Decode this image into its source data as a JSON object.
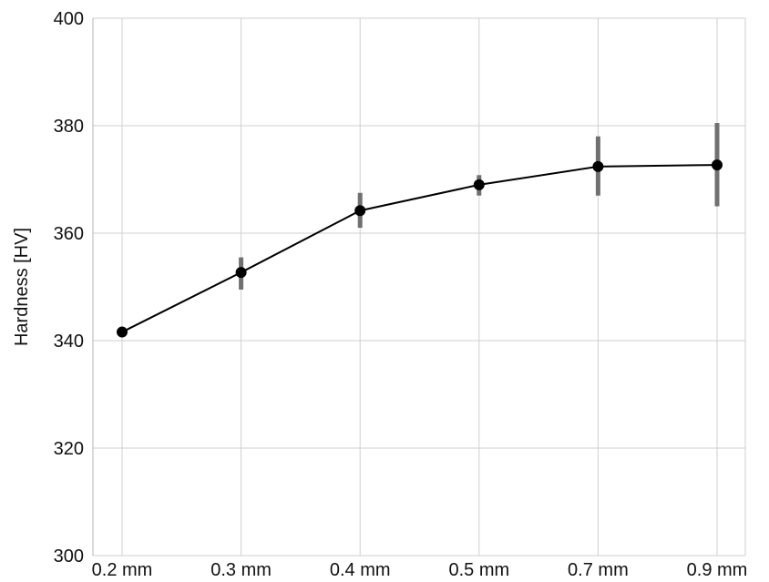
{
  "chart_data": {
    "type": "line",
    "title": "",
    "xlabel": "",
    "ylabel": "Hardness [HV]",
    "categories": [
      "0.2 mm",
      "0.3 mm",
      "0.4 mm",
      "0.5 mm",
      "0.7 mm",
      "0.9 mm"
    ],
    "series": [
      {
        "values": [
          341.6,
          352.7,
          364.2,
          369.0,
          372.4,
          372.7
        ],
        "error_low": [
          341.0,
          349.5,
          361.0,
          367.0,
          367.0,
          365.0
        ],
        "error_high": [
          342.2,
          355.5,
          367.5,
          370.8,
          378.0,
          380.5
        ]
      }
    ],
    "ylim": [
      300,
      400
    ],
    "yticks": [
      300,
      320,
      340,
      360,
      380,
      400
    ],
    "grid": true,
    "legend": "none",
    "colors": {
      "line": "#000000",
      "error_bar": "#707070",
      "grid": "#cfcfcf"
    }
  }
}
